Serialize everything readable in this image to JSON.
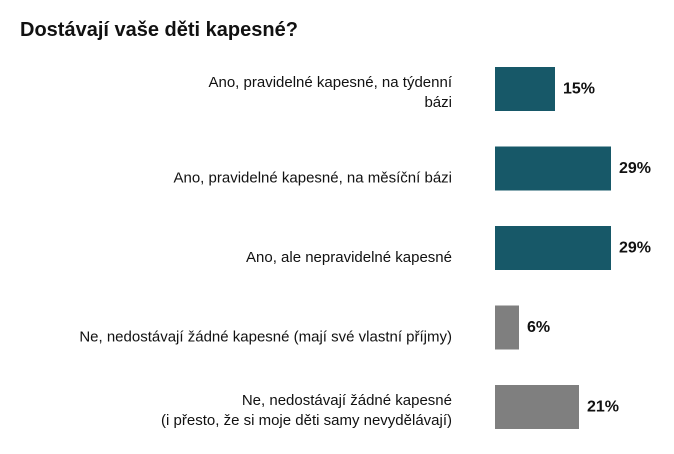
{
  "chart_data": {
    "type": "bar",
    "orientation": "horizontal",
    "title": "Dostávají vaše děti kapesné?",
    "unit": "%",
    "categories": [
      [
        "Ano, pravidelné kapesné, na týdenní",
        "bázi"
      ],
      [
        "Ano, pravidelné kapesné, na měsíční bázi"
      ],
      [
        "Ano, ale nepravidelné kapesné"
      ],
      [
        "Ne, nedostávají žádné kapesné (mají své vlastní příjmy)"
      ],
      [
        "Ne, nedostávají žádné kapesné",
        "(i přesto, že si moje děti samy nevydělávají)"
      ]
    ],
    "values": [
      15,
      29,
      29,
      6,
      21
    ],
    "value_labels": [
      "15%",
      "29%",
      "29%",
      "6%",
      "21%"
    ],
    "bar_colors": [
      "#175868",
      "#175868",
      "#175868",
      "#7f7f7f",
      "#7f7f7f"
    ],
    "xlim": [
      0,
      29
    ],
    "grid": false,
    "legend": "none"
  }
}
